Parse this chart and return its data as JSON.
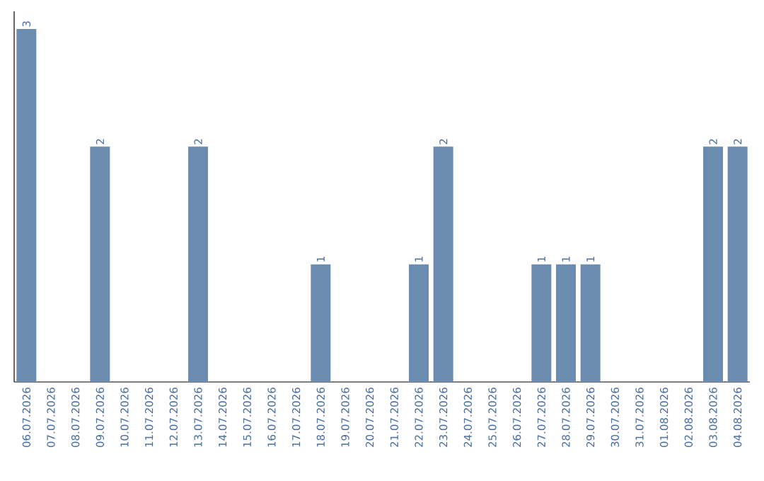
{
  "chart_data": {
    "type": "bar",
    "categories": [
      "06.07.2026",
      "07.07.2026",
      "08.07.2026",
      "09.07.2026",
      "10.07.2026",
      "11.07.2026",
      "12.07.2026",
      "13.07.2026",
      "14.07.2026",
      "15.07.2026",
      "16.07.2026",
      "17.07.2026",
      "18.07.2026",
      "19.07.2026",
      "20.07.2026",
      "21.07.2026",
      "22.07.2026",
      "23.07.2026",
      "24.07.2026",
      "25.07.2026",
      "26.07.2026",
      "27.07.2026",
      "28.07.2026",
      "29.07.2026",
      "30.07.2026",
      "31.07.2026",
      "01.08.2026",
      "02.08.2026",
      "03.08.2026",
      "04.08.2026"
    ],
    "values": [
      3,
      0,
      0,
      2,
      0,
      0,
      0,
      2,
      0,
      0,
      0,
      0,
      1,
      0,
      0,
      0,
      1,
      2,
      0,
      0,
      0,
      1,
      1,
      1,
      0,
      0,
      0,
      0,
      2,
      2
    ],
    "value_labels": [
      "3",
      null,
      null,
      "2",
      null,
      null,
      null,
      "2",
      null,
      null,
      null,
      null,
      "1",
      null,
      null,
      null,
      "1",
      "2",
      null,
      null,
      null,
      "1",
      "1",
      "1",
      null,
      null,
      null,
      null,
      "2",
      "2"
    ],
    "color": "#6b8cae",
    "tick_labels": "x"
  }
}
